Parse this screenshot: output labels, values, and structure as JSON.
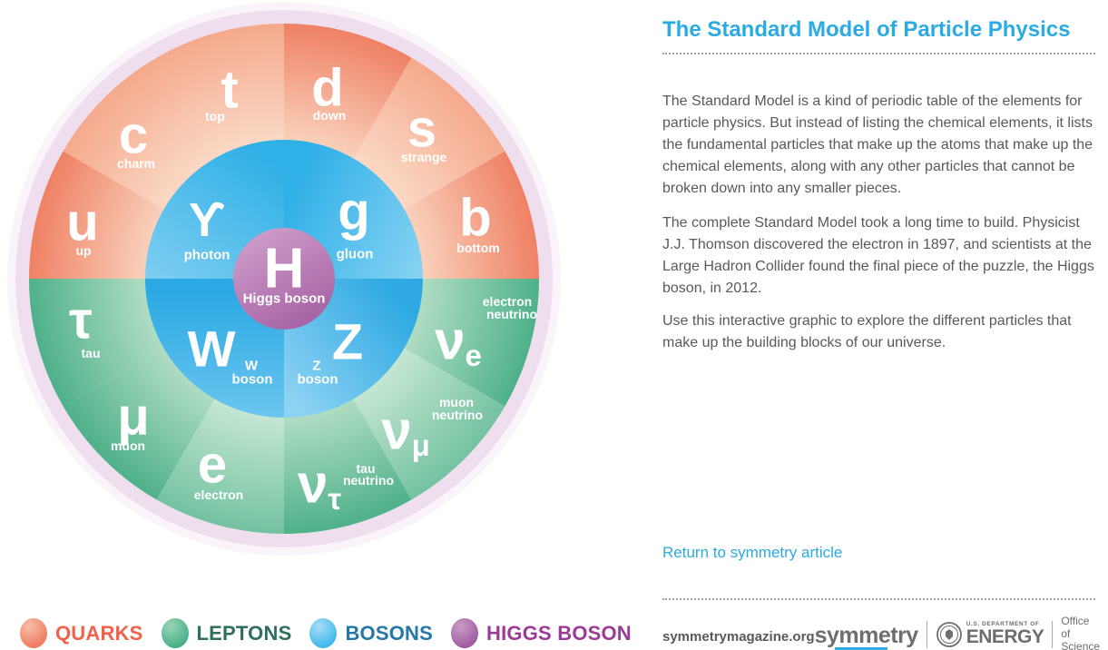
{
  "header": {
    "title": "The Standard Model of Particle Physics"
  },
  "article": {
    "paragraphs": [
      "The Standard Model is a kind of periodic table of the elements for particle physics. But instead of listing the chemical elements, it lists the fundamental particles that make up the atoms that make up the chemical elements, along with any other particles that cannot be broken down into any smaller pieces.",
      "The complete Standard Model took a long time to build. Physicist J.J. Thomson discovered the electron in 1897, and scientists at the Large Hadron Collider found the final piece of the puzzle, the Higgs boson, in 2012.",
      "Use this interactive graphic to explore the different particles that make up the building blocks of our universe."
    ],
    "link_label": "Return to symmetry article"
  },
  "wheel": {
    "higgs": {
      "symbol": "H",
      "name": "Higgs boson"
    },
    "quarks": [
      {
        "symbol": "u",
        "name": "up"
      },
      {
        "symbol": "c",
        "name": "charm"
      },
      {
        "symbol": "t",
        "name": "top"
      },
      {
        "symbol": "d",
        "name": "down"
      },
      {
        "symbol": "s",
        "name": "strange"
      },
      {
        "symbol": "b",
        "name": "bottom"
      }
    ],
    "leptons": [
      {
        "symbol": "τ",
        "name": "tau"
      },
      {
        "symbol": "μ",
        "name": "muon"
      },
      {
        "symbol": "e",
        "name": "electron"
      },
      {
        "symbol": "ν",
        "sub": "τ",
        "name": "tau neutrino"
      },
      {
        "symbol": "ν",
        "sub": "μ",
        "name": "muon neutrino"
      },
      {
        "symbol": "ν",
        "sub": "e",
        "name": "electron neutrino"
      }
    ],
    "bosons": [
      {
        "symbol": "ϒ",
        "name": "photon"
      },
      {
        "symbol": "g",
        "name": "gluon"
      },
      {
        "symbol": "W",
        "name": "W boson"
      },
      {
        "symbol": "Z",
        "name": "Z boson"
      }
    ]
  },
  "legend": {
    "items": [
      {
        "label": "QUARKS",
        "color": "#F2614A"
      },
      {
        "label": "LEPTONS",
        "color": "#2F6F5F"
      },
      {
        "label": "BOSONS",
        "color": "#2478A8"
      },
      {
        "label": "HIGGS BOSON",
        "color": "#9B3A97"
      }
    ]
  },
  "footer": {
    "site": "symmetrymagazine.org",
    "symmetry_logo": "symmetry",
    "doe_department": "U.S. DEPARTMENT OF",
    "doe_energy": "ENERGY",
    "office_line1": "Office of",
    "office_line2": "Science"
  },
  "colors": {
    "accent_blue": "#2BABE3",
    "quark": "#F08266",
    "lepton": "#52B28C",
    "boson": "#3BB5E9",
    "higgs": "#AC6BAA",
    "body_text": "#58595B",
    "logo_gray": "#6D6E70"
  }
}
